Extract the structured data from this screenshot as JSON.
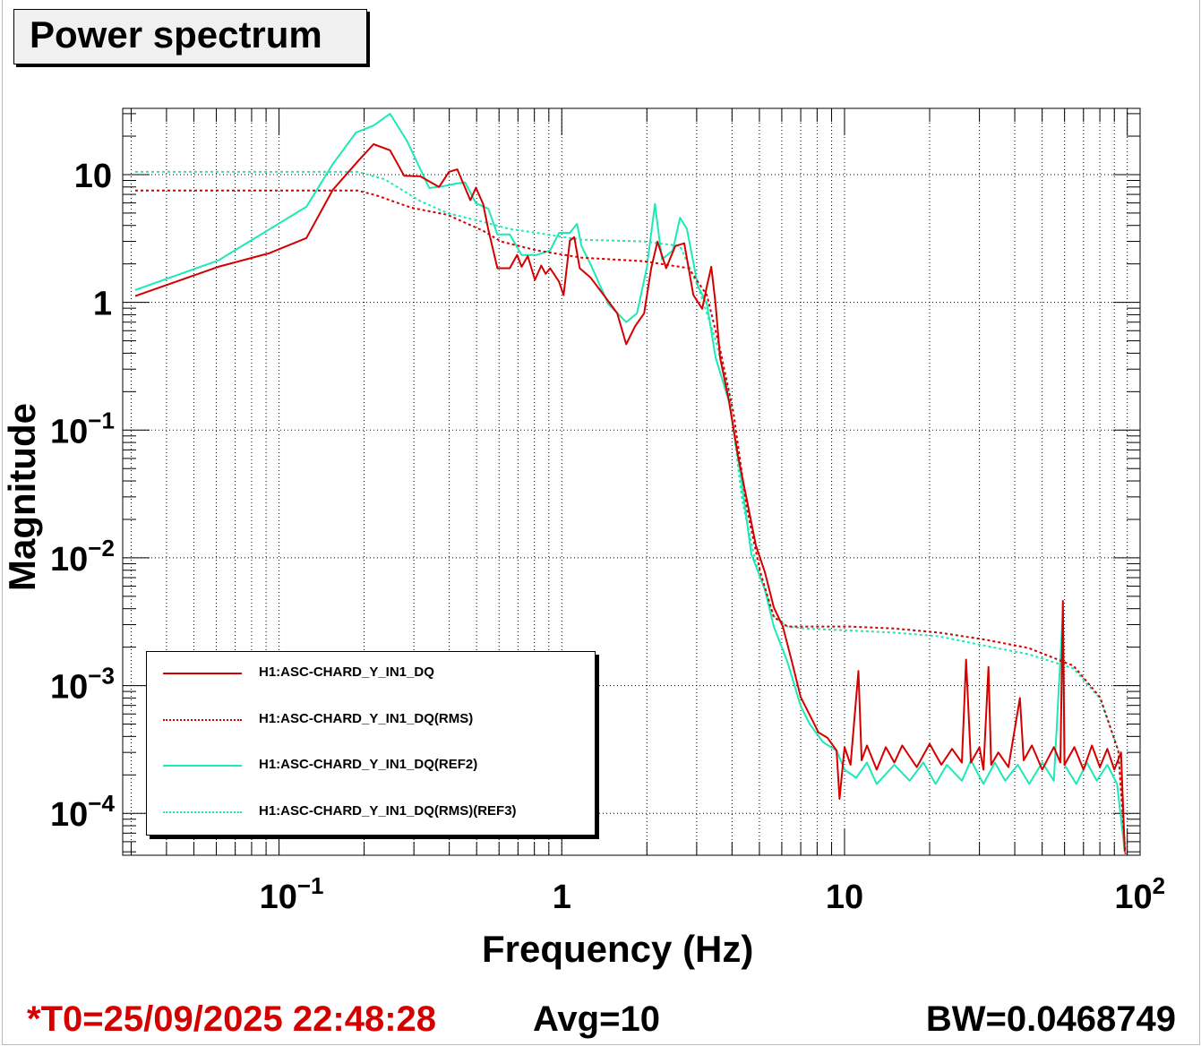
{
  "title": "Power spectrum",
  "footer": {
    "t0": "*T0=25/09/2025 22:48:28",
    "avg": "Avg=10",
    "bw": "BW=0.0468749",
    "t0_color": "#d40000"
  },
  "chart_data": {
    "type": "line",
    "title": "Power spectrum",
    "xlabel": "Frequency (Hz)",
    "ylabel": "Magnitude",
    "xscale": "log",
    "yscale": "log",
    "xlim": [
      0.028,
      111
    ],
    "ylim": [
      4.7e-05,
      33
    ],
    "grid": true,
    "legend_placement": "bottom-left",
    "x_tick_labels": [
      {
        "v": 0.1,
        "base": "10",
        "exp": "−1"
      },
      {
        "v": 1,
        "base": "1",
        "exp": ""
      },
      {
        "v": 10,
        "base": "10",
        "exp": ""
      },
      {
        "v": 100,
        "base": "10",
        "exp": "2"
      }
    ],
    "y_tick_labels": [
      {
        "v": 10,
        "base": "10",
        "exp": ""
      },
      {
        "v": 1,
        "base": "1",
        "exp": ""
      },
      {
        "v": 0.1,
        "base": "10",
        "exp": "−1"
      },
      {
        "v": 0.01,
        "base": "10",
        "exp": "−2"
      },
      {
        "v": 0.001,
        "base": "10",
        "exp": "−3"
      },
      {
        "v": 0.0001,
        "base": "10",
        "exp": "−4"
      }
    ],
    "series": [
      {
        "name": "H1:ASC-CHARD_Y_IN1_DQ(REF2)",
        "color": "#1de9b6",
        "dashed": false,
        "points": [
          [
            0.031,
            1.25
          ],
          [
            0.061,
            2.13
          ],
          [
            0.125,
            5.6
          ],
          [
            0.155,
            12.1
          ],
          [
            0.187,
            21.3
          ],
          [
            0.216,
            24.2
          ],
          [
            0.247,
            29.9
          ],
          [
            0.283,
            18.5
          ],
          [
            0.34,
            7.85
          ],
          [
            0.38,
            8.1
          ],
          [
            0.423,
            8.5
          ],
          [
            0.455,
            8.7
          ],
          [
            0.497,
            5.97
          ],
          [
            0.55,
            5.4
          ],
          [
            0.592,
            3.4
          ],
          [
            0.655,
            3.4
          ],
          [
            0.721,
            2.35
          ],
          [
            0.815,
            2.35
          ],
          [
            0.91,
            2.55
          ],
          [
            0.978,
            3.5
          ],
          [
            1.068,
            3.5
          ],
          [
            1.132,
            4.12
          ],
          [
            1.174,
            2.76
          ],
          [
            1.262,
            2.0
          ],
          [
            1.461,
            0.97
          ],
          [
            1.69,
            0.7
          ],
          [
            1.844,
            0.82
          ],
          [
            1.997,
            1.85
          ],
          [
            2.135,
            5.9
          ],
          [
            2.26,
            2.17
          ],
          [
            2.47,
            2.55
          ],
          [
            2.62,
            4.6
          ],
          [
            2.77,
            3.75
          ],
          [
            3.03,
            1.34
          ],
          [
            3.26,
            0.97
          ],
          [
            3.5,
            0.37
          ],
          [
            3.91,
            0.165
          ],
          [
            4.29,
            0.045
          ],
          [
            4.68,
            0.0107
          ],
          [
            5.23,
            0.0056
          ],
          [
            5.62,
            0.0029
          ],
          [
            6.27,
            0.00155
          ],
          [
            7.0,
            0.00069
          ],
          [
            7.53,
            0.0005
          ],
          [
            8.4,
            0.00036
          ],
          [
            9.37,
            0.00031
          ],
          [
            10,
            0.00022
          ],
          [
            11,
            0.00019
          ],
          [
            12,
            0.00025
          ],
          [
            13,
            0.00017
          ],
          [
            15,
            0.00024
          ],
          [
            17,
            0.00018
          ],
          [
            19,
            0.00025
          ],
          [
            21,
            0.00017
          ],
          [
            23,
            0.00024
          ],
          [
            26,
            0.00018
          ],
          [
            28,
            0.00026
          ],
          [
            31,
            0.00017
          ],
          [
            34,
            0.00025
          ],
          [
            37,
            0.00018
          ],
          [
            41,
            0.00024
          ],
          [
            45,
            0.00017
          ],
          [
            50,
            0.00025
          ],
          [
            55,
            0.00018
          ],
          [
            59.2,
            0.0038
          ],
          [
            60,
            0.00024
          ],
          [
            66,
            0.00017
          ],
          [
            72,
            0.00025
          ],
          [
            78,
            0.00018
          ],
          [
            85,
            0.00024
          ],
          [
            92,
            0.00017
          ],
          [
            98,
            5e-05
          ]
        ]
      },
      {
        "name": "H1:ASC-CHARD_Y_IN1_DQ(RMS)(REF3)",
        "color": "#1de9b6",
        "dashed": true,
        "points": [
          [
            0.031,
            10.5
          ],
          [
            0.19,
            10.5
          ],
          [
            0.236,
            9.2
          ],
          [
            0.316,
            6.2
          ],
          [
            0.394,
            5.0
          ],
          [
            0.527,
            4.26
          ],
          [
            0.655,
            3.75
          ],
          [
            0.815,
            3.5
          ],
          [
            1.174,
            3.09
          ],
          [
            1.955,
            3.0
          ],
          [
            2.62,
            2.76
          ],
          [
            3.03,
            1.34
          ],
          [
            3.5,
            0.51
          ],
          [
            3.91,
            0.19
          ],
          [
            4.35,
            0.028
          ],
          [
            4.86,
            0.0091
          ],
          [
            5.62,
            0.0035
          ],
          [
            6.27,
            0.0029
          ],
          [
            7.25,
            0.0028
          ],
          [
            10.4,
            0.0027
          ],
          [
            15.0,
            0.0026
          ],
          [
            21.6,
            0.00243
          ],
          [
            31.1,
            0.00206
          ],
          [
            44.8,
            0.00176
          ],
          [
            64.5,
            0.00136
          ],
          [
            80.1,
            0.00079
          ],
          [
            92.9,
            0.00031
          ],
          [
            98.5,
            4.8e-05
          ]
        ]
      },
      {
        "name": "H1:ASC-CHARD_Y_IN1_DQ",
        "color": "#d40000",
        "dashed": false,
        "points": [
          [
            0.031,
            1.12
          ],
          [
            0.061,
            1.9
          ],
          [
            0.092,
            2.42
          ],
          [
            0.125,
            3.19
          ],
          [
            0.155,
            7.6
          ],
          [
            0.19,
            12.7
          ],
          [
            0.216,
            17.3
          ],
          [
            0.247,
            15.5
          ],
          [
            0.277,
            9.8
          ],
          [
            0.316,
            9.7
          ],
          [
            0.368,
            8.0
          ],
          [
            0.399,
            10.5
          ],
          [
            0.427,
            11.0
          ],
          [
            0.475,
            6.3
          ],
          [
            0.497,
            7.9
          ],
          [
            0.527,
            5.9
          ],
          [
            0.55,
            3.7
          ],
          [
            0.592,
            1.85
          ],
          [
            0.655,
            1.85
          ],
          [
            0.695,
            2.35
          ],
          [
            0.721,
            1.9
          ],
          [
            0.758,
            2.3
          ],
          [
            0.804,
            1.5
          ],
          [
            0.846,
            1.94
          ],
          [
            0.877,
            1.67
          ],
          [
            0.91,
            1.85
          ],
          [
            0.978,
            1.45
          ],
          [
            1.015,
            1.14
          ],
          [
            1.068,
            3.04
          ],
          [
            1.107,
            3.24
          ],
          [
            1.157,
            1.85
          ],
          [
            1.262,
            1.57
          ],
          [
            1.408,
            1.14
          ],
          [
            1.571,
            0.82
          ],
          [
            1.69,
            0.47
          ],
          [
            1.817,
            0.65
          ],
          [
            1.955,
            0.82
          ],
          [
            2.071,
            1.85
          ],
          [
            2.18,
            2.99
          ],
          [
            2.34,
            1.85
          ],
          [
            2.52,
            2.76
          ],
          [
            2.71,
            2.9
          ],
          [
            2.92,
            1.14
          ],
          [
            3.14,
            0.89
          ],
          [
            3.26,
            1.34
          ],
          [
            3.38,
            1.9
          ],
          [
            3.5,
            0.97
          ],
          [
            3.63,
            0.37
          ],
          [
            3.91,
            0.165
          ],
          [
            4.2,
            0.063
          ],
          [
            4.52,
            0.028
          ],
          [
            4.86,
            0.0125
          ],
          [
            5.23,
            0.0077
          ],
          [
            5.62,
            0.0041
          ],
          [
            6.05,
            0.0029
          ],
          [
            6.51,
            0.00155
          ],
          [
            7.0,
            0.00081
          ],
          [
            7.53,
            0.00059
          ],
          [
            8.09,
            0.00043
          ],
          [
            8.71,
            0.00039
          ],
          [
            9.37,
            0.00031
          ],
          [
            9.6,
            0.00013
          ],
          [
            10,
            0.00033
          ],
          [
            10.5,
            0.00024
          ],
          [
            11.2,
            0.0013
          ],
          [
            11.5,
            0.00026
          ],
          [
            12,
            0.00034
          ],
          [
            13,
            0.00022
          ],
          [
            14,
            0.00033
          ],
          [
            15,
            0.00025
          ],
          [
            16,
            0.00034
          ],
          [
            18,
            0.00023
          ],
          [
            20,
            0.00035
          ],
          [
            22,
            0.00024
          ],
          [
            24,
            0.00032
          ],
          [
            26,
            0.00025
          ],
          [
            26.9,
            0.0016
          ],
          [
            28,
            0.00025
          ],
          [
            30,
            0.00033
          ],
          [
            31,
            0.00022
          ],
          [
            32.3,
            0.0014
          ],
          [
            33,
            0.00024
          ],
          [
            35,
            0.0003
          ],
          [
            38,
            0.00023
          ],
          [
            41.7,
            0.0008
          ],
          [
            43,
            0.00026
          ],
          [
            46,
            0.00034
          ],
          [
            50,
            0.00022
          ],
          [
            55,
            0.00033
          ],
          [
            58,
            0.00025
          ],
          [
            59.2,
            0.0046
          ],
          [
            60,
            0.00024
          ],
          [
            65,
            0.00033
          ],
          [
            70,
            0.00022
          ],
          [
            75,
            0.00034
          ],
          [
            80,
            0.00023
          ],
          [
            85,
            0.00032
          ],
          [
            90,
            0.00022
          ],
          [
            95,
            0.0003
          ],
          [
            98,
            5e-05
          ]
        ]
      },
      {
        "name": "H1:ASC-CHARD_Y_IN1_DQ(RMS)",
        "color": "#d40000",
        "dashed": true,
        "points": [
          [
            0.031,
            7.5
          ],
          [
            0.19,
            7.5
          ],
          [
            0.22,
            6.9
          ],
          [
            0.294,
            5.5
          ],
          [
            0.394,
            4.85
          ],
          [
            0.527,
            3.63
          ],
          [
            0.609,
            3.0
          ],
          [
            0.815,
            2.55
          ],
          [
            1.174,
            2.24
          ],
          [
            1.955,
            2.1
          ],
          [
            2.81,
            1.85
          ],
          [
            3.26,
            1.14
          ],
          [
            3.63,
            0.43
          ],
          [
            4.04,
            0.14
          ],
          [
            4.52,
            0.024
          ],
          [
            5.04,
            0.0077
          ],
          [
            5.62,
            0.00345
          ],
          [
            6.27,
            0.0029
          ],
          [
            10.4,
            0.0029
          ],
          [
            15.0,
            0.0028
          ],
          [
            21.6,
            0.0026
          ],
          [
            31.1,
            0.0023
          ],
          [
            44.8,
            0.00197
          ],
          [
            64.5,
            0.00143
          ],
          [
            80.1,
            0.00081
          ],
          [
            92.9,
            0.00031
          ],
          [
            98.5,
            4.8e-05
          ]
        ]
      }
    ],
    "legend": [
      {
        "label": "H1:ASC-CHARD_Y_IN1_DQ",
        "color": "#d40000",
        "dashed": false
      },
      {
        "label": "H1:ASC-CHARD_Y_IN1_DQ(RMS)",
        "color": "#d40000",
        "dashed": true
      },
      {
        "label": "H1:ASC-CHARD_Y_IN1_DQ(REF2)",
        "color": "#1de9b6",
        "dashed": false
      },
      {
        "label": "H1:ASC-CHARD_Y_IN1_DQ(RMS)(REF3)",
        "color": "#1de9b6",
        "dashed": true
      }
    ]
  }
}
